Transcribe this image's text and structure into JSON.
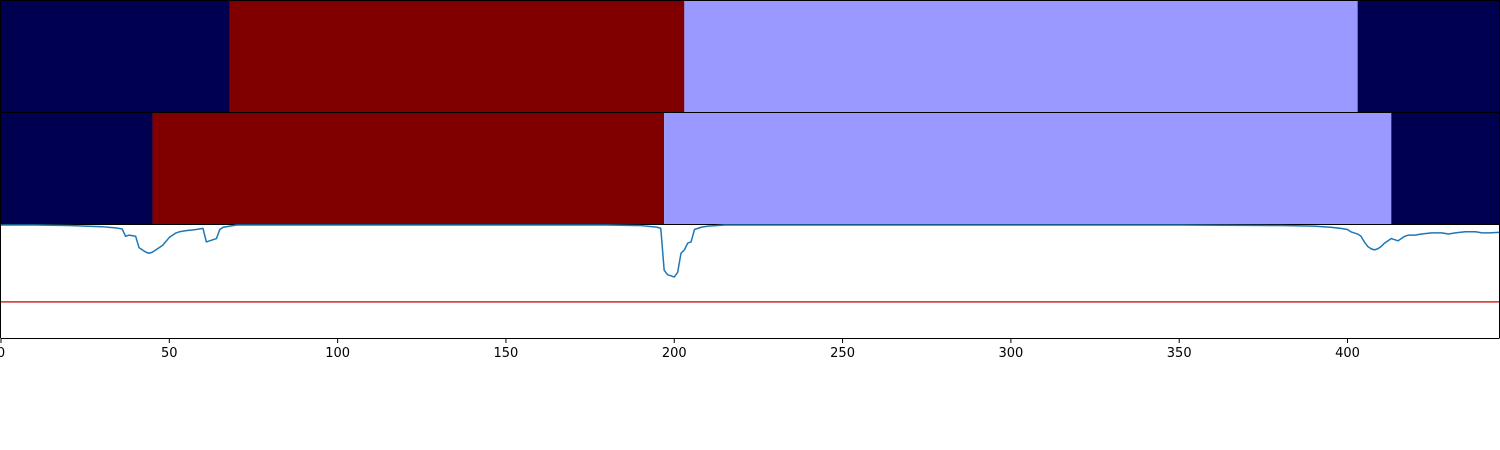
{
  "chart_data": {
    "type": "heatmap",
    "title": "",
    "xlabel": "",
    "ylabel": "",
    "xlim": [
      0,
      445
    ],
    "x_ticks": [
      0,
      50,
      100,
      150,
      200,
      250,
      300,
      350,
      400
    ],
    "x_tick_labels": [
      "0",
      "50",
      "100",
      "150",
      "200",
      "250",
      "300",
      "350",
      "400"
    ],
    "grid": false,
    "legend": "none",
    "segment_rows": [
      {
        "segments": [
          {
            "start": 0,
            "end": 68,
            "color": "#000050"
          },
          {
            "start": 68,
            "end": 203,
            "color": "#800000"
          },
          {
            "start": 203,
            "end": 403,
            "color": "#9999ff"
          },
          {
            "start": 403,
            "end": 445,
            "color": "#000050"
          }
        ]
      },
      {
        "segments": [
          {
            "start": 0,
            "end": 45,
            "color": "#000050"
          },
          {
            "start": 45,
            "end": 197,
            "color": "#800000"
          },
          {
            "start": 197,
            "end": 413,
            "color": "#9999ff"
          },
          {
            "start": 413,
            "end": 445,
            "color": "#000050"
          }
        ]
      }
    ],
    "line_panel": {
      "ylim": [
        0,
        1
      ],
      "threshold": 0.32,
      "threshold_color": "#d62728",
      "line_color": "#1f77b4",
      "series": {
        "x": [
          0,
          10,
          20,
          25,
          30,
          34,
          36,
          37,
          38,
          40,
          41,
          42,
          43,
          44,
          45,
          46,
          47,
          48,
          50,
          52,
          53,
          55,
          58,
          60,
          61,
          62,
          63,
          64,
          65,
          66,
          68,
          70,
          75,
          80,
          100,
          150,
          180,
          190,
          195,
          196,
          197,
          198,
          199,
          200,
          201,
          202,
          203,
          204,
          205,
          206,
          208,
          210,
          215,
          230,
          300,
          350,
          380,
          390,
          395,
          398,
          400,
          401,
          402,
          403,
          404,
          405,
          406,
          407,
          408,
          409,
          410,
          411,
          412,
          413,
          414,
          415,
          416,
          417,
          418,
          420,
          422,
          425,
          428,
          430,
          432,
          435,
          438,
          440,
          442,
          445
        ],
        "y": [
          1.0,
          1.0,
          0.995,
          0.99,
          0.985,
          0.975,
          0.965,
          0.9,
          0.91,
          0.9,
          0.8,
          0.78,
          0.76,
          0.75,
          0.76,
          0.78,
          0.8,
          0.82,
          0.89,
          0.93,
          0.94,
          0.95,
          0.96,
          0.97,
          0.85,
          0.86,
          0.87,
          0.88,
          0.96,
          0.98,
          0.99,
          1.0,
          1.0,
          1.0,
          1.0,
          1.0,
          1.0,
          0.995,
          0.98,
          0.97,
          0.6,
          0.56,
          0.55,
          0.54,
          0.58,
          0.75,
          0.78,
          0.84,
          0.85,
          0.96,
          0.98,
          0.99,
          1.0,
          1.0,
          1.0,
          1.0,
          0.995,
          0.99,
          0.98,
          0.97,
          0.96,
          0.94,
          0.93,
          0.92,
          0.9,
          0.85,
          0.81,
          0.79,
          0.78,
          0.79,
          0.81,
          0.84,
          0.86,
          0.88,
          0.87,
          0.86,
          0.88,
          0.9,
          0.91,
          0.91,
          0.92,
          0.93,
          0.93,
          0.92,
          0.93,
          0.94,
          0.94,
          0.93,
          0.93,
          0.935
        ]
      }
    }
  }
}
